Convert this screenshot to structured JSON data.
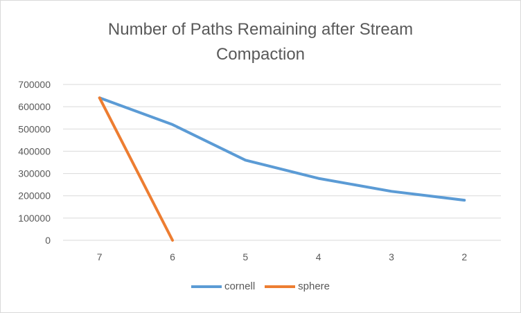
{
  "chart_data": {
    "type": "line",
    "title_lines": [
      "Number of Paths Remaining after Stream",
      "Compaction"
    ],
    "categories": [
      "7",
      "6",
      "5",
      "4",
      "3",
      "2"
    ],
    "yticks": [
      "700000",
      "600000",
      "500000",
      "400000",
      "300000",
      "200000",
      "100000",
      "0"
    ],
    "ylim": [
      0,
      700000
    ],
    "grid": true,
    "legend_position": "bottom",
    "series": [
      {
        "name": "cornell",
        "color": "#5b9bd5",
        "values": [
          640000,
          520000,
          360000,
          278000,
          220000,
          180000
        ]
      },
      {
        "name": "sphere",
        "color": "#ed7d31",
        "values": [
          640000,
          0,
          null,
          null,
          null,
          null
        ]
      }
    ]
  }
}
